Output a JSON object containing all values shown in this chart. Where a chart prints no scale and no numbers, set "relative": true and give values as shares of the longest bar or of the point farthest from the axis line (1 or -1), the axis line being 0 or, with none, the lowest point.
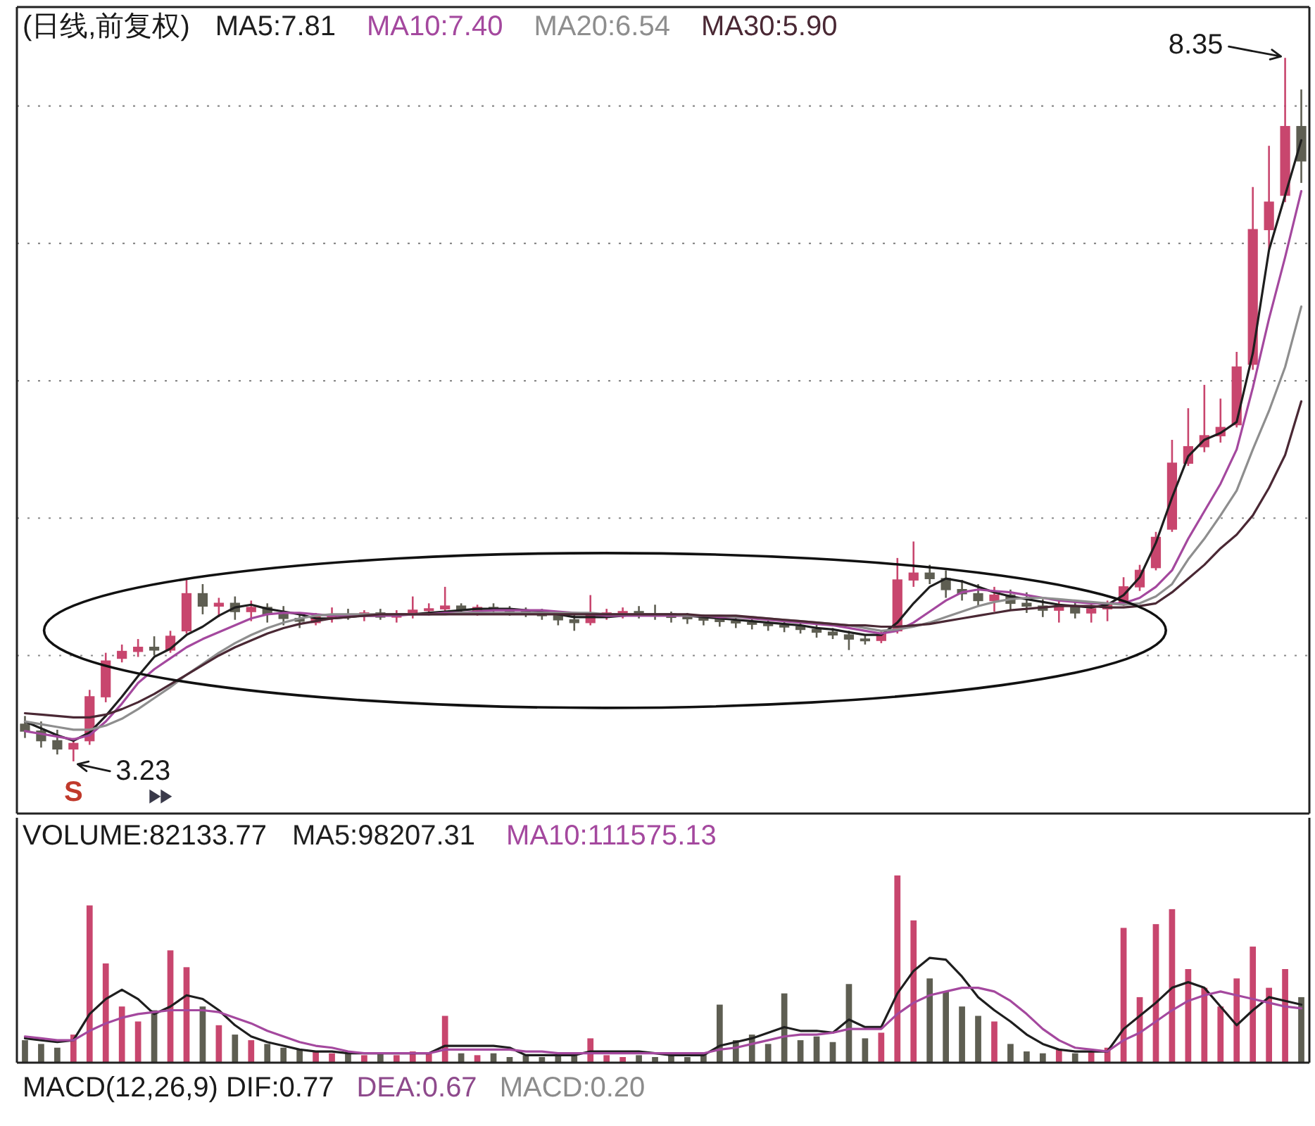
{
  "chart_data": [
    {
      "type": "candlestick",
      "title": "(日线,前复权)",
      "categories": [
        null,
        null,
        null,
        null,
        null,
        null,
        null,
        null,
        null,
        null,
        null,
        null,
        null,
        null,
        null,
        null,
        null,
        null,
        null,
        null,
        null,
        null,
        null,
        null,
        null,
        null,
        null,
        null,
        null,
        null,
        null,
        null,
        null,
        null,
        null,
        null,
        null,
        null,
        null,
        null,
        null,
        null,
        null,
        null,
        null,
        null,
        null,
        null,
        null,
        null,
        null,
        null,
        null,
        null,
        null,
        null,
        null,
        null,
        null,
        null,
        null,
        null,
        null,
        null,
        null,
        null,
        null,
        null,
        null,
        null,
        null,
        null,
        null,
        null,
        null,
        null,
        null,
        null,
        null,
        null
      ],
      "ohlc": [
        [
          3.5,
          3.56,
          3.4,
          3.45
        ],
        [
          3.45,
          3.52,
          3.33,
          3.38
        ],
        [
          3.38,
          3.46,
          3.28,
          3.32
        ],
        [
          3.32,
          3.4,
          3.23,
          3.36
        ],
        [
          3.38,
          3.75,
          3.35,
          3.7
        ],
        [
          3.7,
          4.02,
          3.66,
          3.96
        ],
        [
          3.98,
          4.08,
          3.95,
          4.03
        ],
        [
          4.03,
          4.12,
          3.99,
          4.06
        ],
        [
          4.06,
          4.14,
          4.0,
          4.04
        ],
        [
          4.04,
          4.18,
          4.02,
          4.14
        ],
        [
          4.18,
          4.55,
          4.16,
          4.45
        ],
        [
          4.45,
          4.52,
          4.3,
          4.36
        ],
        [
          4.36,
          4.42,
          4.28,
          4.38
        ],
        [
          4.38,
          4.43,
          4.26,
          4.32
        ],
        [
          4.32,
          4.4,
          4.25,
          4.35
        ],
        [
          4.35,
          4.38,
          4.24,
          4.3
        ],
        [
          4.3,
          4.36,
          4.22,
          4.27
        ],
        [
          4.27,
          4.3,
          4.2,
          4.25
        ],
        [
          4.24,
          4.31,
          4.22,
          4.28
        ],
        [
          4.28,
          4.35,
          4.24,
          4.3
        ],
        [
          4.3,
          4.34,
          4.26,
          4.29
        ],
        [
          4.29,
          4.33,
          4.25,
          4.31
        ],
        [
          4.31,
          4.34,
          4.26,
          4.28
        ],
        [
          4.28,
          4.33,
          4.24,
          4.3
        ],
        [
          4.3,
          4.43,
          4.27,
          4.33
        ],
        [
          4.33,
          4.38,
          4.29,
          4.34
        ],
        [
          4.34,
          4.5,
          4.3,
          4.36
        ],
        [
          4.36,
          4.38,
          4.31,
          4.33
        ],
        [
          4.33,
          4.37,
          4.29,
          4.35
        ],
        [
          4.35,
          4.38,
          4.31,
          4.34
        ],
        [
          4.34,
          4.36,
          4.29,
          4.32
        ],
        [
          4.32,
          4.35,
          4.28,
          4.31
        ],
        [
          4.31,
          4.34,
          4.26,
          4.29
        ],
        [
          4.29,
          4.32,
          4.22,
          4.26
        ],
        [
          4.26,
          4.3,
          4.18,
          4.24
        ],
        [
          4.24,
          4.44,
          4.22,
          4.3
        ],
        [
          4.3,
          4.34,
          4.26,
          4.31
        ],
        [
          4.31,
          4.35,
          4.27,
          4.32
        ],
        [
          4.32,
          4.36,
          4.27,
          4.3
        ],
        [
          4.3,
          4.37,
          4.26,
          4.29
        ],
        [
          4.29,
          4.32,
          4.24,
          4.28
        ],
        [
          4.28,
          4.31,
          4.23,
          4.27
        ],
        [
          4.27,
          4.3,
          4.22,
          4.26
        ],
        [
          4.26,
          4.29,
          4.21,
          4.25
        ],
        [
          4.25,
          4.28,
          4.2,
          4.24
        ],
        [
          4.24,
          4.27,
          4.19,
          4.23
        ],
        [
          4.23,
          4.27,
          4.18,
          4.22
        ],
        [
          4.22,
          4.25,
          4.17,
          4.21
        ],
        [
          4.21,
          4.24,
          4.16,
          4.19
        ],
        [
          4.19,
          4.23,
          4.13,
          4.17
        ],
        [
          4.17,
          4.2,
          4.12,
          4.15
        ],
        [
          4.15,
          4.18,
          4.04,
          4.12
        ],
        [
          4.12,
          4.15,
          4.08,
          4.11
        ],
        [
          4.11,
          4.18,
          4.09,
          4.16
        ],
        [
          4.18,
          4.71,
          4.16,
          4.55
        ],
        [
          4.55,
          4.83,
          4.5,
          4.6
        ],
        [
          4.6,
          4.66,
          4.52,
          4.56
        ],
        [
          4.56,
          4.62,
          4.42,
          4.48
        ],
        [
          4.48,
          4.55,
          4.4,
          4.45
        ],
        [
          4.45,
          4.52,
          4.36,
          4.4
        ],
        [
          4.4,
          4.5,
          4.32,
          4.44
        ],
        [
          4.44,
          4.48,
          4.33,
          4.38
        ],
        [
          4.38,
          4.46,
          4.31,
          4.36
        ],
        [
          4.36,
          4.41,
          4.28,
          4.33
        ],
        [
          4.33,
          4.4,
          4.24,
          4.36
        ],
        [
          4.36,
          4.39,
          4.27,
          4.31
        ],
        [
          4.31,
          4.37,
          4.24,
          4.34
        ],
        [
          4.34,
          4.4,
          4.25,
          4.37
        ],
        [
          4.38,
          4.57,
          4.36,
          4.5
        ],
        [
          4.5,
          4.66,
          4.47,
          4.62
        ],
        [
          4.64,
          4.9,
          4.62,
          4.86
        ],
        [
          4.92,
          5.57,
          4.9,
          5.4
        ],
        [
          5.4,
          5.8,
          5.38,
          5.52
        ],
        [
          5.52,
          5.97,
          5.48,
          5.6
        ],
        [
          5.6,
          5.87,
          5.55,
          5.66
        ],
        [
          5.68,
          6.21,
          5.66,
          6.1
        ],
        [
          6.12,
          7.41,
          6.08,
          7.1
        ],
        [
          7.1,
          7.71,
          6.96,
          7.3
        ],
        [
          7.35,
          8.35,
          7.3,
          7.85
        ],
        [
          7.85,
          8.12,
          7.44,
          7.6
        ]
      ],
      "colors": [
        "#5e5e52",
        "#5e5e52",
        "#5e5e52",
        "#c8466e",
        "#c8466e",
        "#c8466e",
        "#c8466e",
        "#c8466e",
        "#5e5e52",
        "#c8466e",
        "#c8466e",
        "#5e5e52",
        "#c8466e",
        "#5e5e52",
        "#c8466e",
        "#5e5e52",
        "#5e5e52",
        "#5e5e52",
        "#c8466e",
        "#c8466e",
        "#5e5e52",
        "#c8466e",
        "#5e5e52",
        "#c8466e",
        "#c8466e",
        "#c8466e",
        "#c8466e",
        "#5e5e52",
        "#c8466e",
        "#5e5e52",
        "#5e5e52",
        "#5e5e52",
        "#5e5e52",
        "#5e5e52",
        "#5e5e52",
        "#c8466e",
        "#c8466e",
        "#c8466e",
        "#5e5e52",
        "#5e5e52",
        "#5e5e52",
        "#5e5e52",
        "#5e5e52",
        "#5e5e52",
        "#5e5e52",
        "#5e5e52",
        "#5e5e52",
        "#5e5e52",
        "#5e5e52",
        "#5e5e52",
        "#5e5e52",
        "#5e5e52",
        "#5e5e52",
        "#c8466e",
        "#c8466e",
        "#c8466e",
        "#5e5e52",
        "#5e5e52",
        "#5e5e52",
        "#5e5e52",
        "#c8466e",
        "#5e5e52",
        "#5e5e52",
        "#5e5e52",
        "#c8466e",
        "#5e5e52",
        "#c8466e",
        "#c8466e",
        "#c8466e",
        "#c8466e",
        "#c8466e",
        "#c8466e",
        "#c8466e",
        "#c8466e",
        "#c8466e",
        "#c8466e",
        "#c8466e",
        "#c8466e",
        "#c8466e",
        "#5e5e52"
      ],
      "series": [
        {
          "type": "line",
          "name": "MA5:7.81",
          "color": "#1e1e1e",
          "values": [
            3.52,
            3.47,
            3.42,
            3.38,
            3.44,
            3.56,
            3.7,
            3.85,
            3.99,
            4.05,
            4.15,
            4.21,
            4.29,
            4.35,
            4.37,
            4.34,
            4.32,
            4.3,
            4.27,
            4.27,
            4.28,
            4.29,
            4.29,
            4.3,
            4.3,
            4.31,
            4.32,
            4.33,
            4.34,
            4.34,
            4.34,
            4.33,
            4.32,
            4.3,
            4.28,
            4.28,
            4.28,
            4.29,
            4.3,
            4.3,
            4.3,
            4.29,
            4.28,
            4.27,
            4.26,
            4.25,
            4.24,
            4.23,
            4.22,
            4.2,
            4.19,
            4.17,
            4.15,
            4.15,
            4.24,
            4.38,
            4.5,
            4.56,
            4.54,
            4.5,
            4.46,
            4.43,
            4.41,
            4.39,
            4.37,
            4.36,
            4.35,
            4.37,
            4.44,
            4.57,
            4.82,
            5.15,
            5.45,
            5.57,
            5.62,
            5.7,
            6.2,
            6.95,
            7.35,
            7.75
          ]
        },
        {
          "type": "line",
          "name": "MA10:7.40",
          "color": "#a4489e",
          "values": [
            3.45,
            3.43,
            3.41,
            3.39,
            3.42,
            3.52,
            3.65,
            3.8,
            3.9,
            3.98,
            4.06,
            4.12,
            4.17,
            4.22,
            4.27,
            4.3,
            4.31,
            4.31,
            4.3,
            4.29,
            4.29,
            4.29,
            4.29,
            4.29,
            4.3,
            4.3,
            4.31,
            4.31,
            4.32,
            4.33,
            4.33,
            4.33,
            4.33,
            4.32,
            4.31,
            4.3,
            4.29,
            4.29,
            4.29,
            4.29,
            4.29,
            4.29,
            4.29,
            4.28,
            4.28,
            4.27,
            4.26,
            4.25,
            4.24,
            4.23,
            4.22,
            4.2,
            4.18,
            4.16,
            4.18,
            4.24,
            4.32,
            4.4,
            4.46,
            4.48,
            4.47,
            4.46,
            4.44,
            4.42,
            4.4,
            4.39,
            4.38,
            4.38,
            4.38,
            4.42,
            4.5,
            4.62,
            4.85,
            5.05,
            5.25,
            5.5,
            5.95,
            6.45,
            6.9,
            7.38
          ]
        },
        {
          "type": "line",
          "name": "MA20:6.54",
          "color": "#8e8e8e",
          "values": [
            3.52,
            3.5,
            3.48,
            3.46,
            3.46,
            3.49,
            3.54,
            3.61,
            3.69,
            3.77,
            3.86,
            3.94,
            4.02,
            4.09,
            4.15,
            4.2,
            4.24,
            4.27,
            4.29,
            4.3,
            4.3,
            4.3,
            4.3,
            4.3,
            4.3,
            4.3,
            4.3,
            4.31,
            4.31,
            4.31,
            4.31,
            4.31,
            4.31,
            4.31,
            4.31,
            4.31,
            4.3,
            4.3,
            4.3,
            4.3,
            4.3,
            4.29,
            4.29,
            4.29,
            4.28,
            4.28,
            4.27,
            4.26,
            4.25,
            4.24,
            4.23,
            4.22,
            4.2,
            4.18,
            4.19,
            4.21,
            4.24,
            4.28,
            4.32,
            4.36,
            4.39,
            4.41,
            4.42,
            4.42,
            4.41,
            4.4,
            4.39,
            4.38,
            4.37,
            4.38,
            4.43,
            4.52,
            4.7,
            4.85,
            5.02,
            5.2,
            5.5,
            5.78,
            6.1,
            6.54
          ]
        },
        {
          "type": "line",
          "name": "MA30:5.90",
          "color": "#4a2834",
          "values": [
            3.58,
            3.57,
            3.56,
            3.55,
            3.55,
            3.57,
            3.61,
            3.66,
            3.72,
            3.79,
            3.86,
            3.93,
            4.0,
            4.06,
            4.11,
            4.16,
            4.2,
            4.23,
            4.25,
            4.27,
            4.28,
            4.29,
            4.3,
            4.3,
            4.3,
            4.3,
            4.3,
            4.3,
            4.3,
            4.3,
            4.3,
            4.3,
            4.3,
            4.3,
            4.3,
            4.3,
            4.3,
            4.3,
            4.3,
            4.3,
            4.3,
            4.3,
            4.29,
            4.29,
            4.29,
            4.28,
            4.27,
            4.26,
            4.25,
            4.24,
            4.23,
            4.22,
            4.22,
            4.21,
            4.21,
            4.22,
            4.23,
            4.25,
            4.27,
            4.29,
            4.31,
            4.33,
            4.34,
            4.35,
            4.36,
            4.36,
            4.36,
            4.35,
            4.35,
            4.36,
            4.38,
            4.46,
            4.56,
            4.66,
            4.78,
            4.88,
            5.02,
            5.22,
            5.46,
            5.85
          ]
        }
      ],
      "ylim": [
        2.85,
        8.72
      ],
      "yticks": [
        {
          "value": 4,
          "label": null
        },
        {
          "value": 5,
          "label": null
        },
        {
          "value": 6,
          "label": null
        },
        {
          "value": 7,
          "label": null
        },
        {
          "value": 8,
          "label": null
        }
      ],
      "grid": "y",
      "annotations": [
        "8.35",
        "3.23",
        "S"
      ]
    },
    {
      "type": "bar",
      "title": "VOLUME:82133.77",
      "relative": true,
      "categories": [
        null,
        null,
        null,
        null,
        null,
        null,
        null,
        null,
        null,
        null,
        null,
        null,
        null,
        null,
        null,
        null,
        null,
        null,
        null,
        null,
        null,
        null,
        null,
        null,
        null,
        null,
        null,
        null,
        null,
        null,
        null,
        null,
        null,
        null,
        null,
        null,
        null,
        null,
        null,
        null,
        null,
        null,
        null,
        null,
        null,
        null,
        null,
        null,
        null,
        null,
        null,
        null,
        null,
        null,
        null,
        null,
        null,
        null,
        null,
        null,
        null,
        null,
        null,
        null,
        null,
        null,
        null,
        null,
        null,
        null,
        null,
        null,
        null,
        null,
        null,
        null,
        null,
        null,
        null,
        null
      ],
      "series": [
        {
          "values": [
            0.12,
            0.1,
            0.08,
            0.15,
            0.84,
            0.53,
            0.3,
            0.22,
            0.28,
            0.6,
            0.51,
            0.3,
            0.2,
            0.15,
            0.12,
            0.1,
            0.08,
            0.07,
            0.06,
            0.05,
            0.06,
            0.04,
            0.05,
            0.04,
            0.06,
            0.05,
            0.25,
            0.05,
            0.04,
            0.05,
            0.03,
            0.04,
            0.03,
            0.04,
            0.05,
            0.13,
            0.04,
            0.03,
            0.04,
            0.03,
            0.04,
            0.03,
            0.05,
            0.31,
            0.12,
            0.15,
            0.1,
            0.37,
            0.12,
            0.14,
            0.11,
            0.42,
            0.13,
            0.16,
            1.0,
            0.76,
            0.45,
            0.38,
            0.3,
            0.25,
            0.22,
            0.1,
            0.06,
            0.05,
            0.07,
            0.05,
            0.06,
            0.08,
            0.72,
            0.35,
            0.74,
            0.82,
            0.5,
            0.4,
            0.3,
            0.45,
            0.62,
            0.4,
            0.5,
            0.35
          ],
          "colors": [
            "#5e5e52",
            "#5e5e52",
            "#5e5e52",
            "#c8466e",
            "#c8466e",
            "#c8466e",
            "#c8466e",
            "#c8466e",
            "#5e5e52",
            "#c8466e",
            "#c8466e",
            "#5e5e52",
            "#c8466e",
            "#5e5e52",
            "#c8466e",
            "#5e5e52",
            "#5e5e52",
            "#5e5e52",
            "#c8466e",
            "#c8466e",
            "#5e5e52",
            "#c8466e",
            "#5e5e52",
            "#c8466e",
            "#c8466e",
            "#c8466e",
            "#c8466e",
            "#5e5e52",
            "#c8466e",
            "#5e5e52",
            "#5e5e52",
            "#5e5e52",
            "#5e5e52",
            "#5e5e52",
            "#5e5e52",
            "#c8466e",
            "#c8466e",
            "#c8466e",
            "#5e5e52",
            "#5e5e52",
            "#5e5e52",
            "#5e5e52",
            "#5e5e52",
            "#5e5e52",
            "#5e5e52",
            "#5e5e52",
            "#5e5e52",
            "#5e5e52",
            "#5e5e52",
            "#5e5e52",
            "#5e5e52",
            "#5e5e52",
            "#5e5e52",
            "#c8466e",
            "#c8466e",
            "#c8466e",
            "#5e5e52",
            "#5e5e52",
            "#5e5e52",
            "#5e5e52",
            "#c8466e",
            "#5e5e52",
            "#5e5e52",
            "#5e5e52",
            "#c8466e",
            "#5e5e52",
            "#c8466e",
            "#c8466e",
            "#c8466e",
            "#c8466e",
            "#c8466e",
            "#c8466e",
            "#c8466e",
            "#c8466e",
            "#c8466e",
            "#c8466e",
            "#c8466e",
            "#c8466e",
            "#c8466e",
            "#5e5e52"
          ]
        },
        {
          "type": "line",
          "name": "MA5:98207.31",
          "color": "#1e1e1e",
          "values": [
            0.13,
            0.12,
            0.11,
            0.12,
            0.26,
            0.34,
            0.39,
            0.34,
            0.26,
            0.3,
            0.36,
            0.34,
            0.28,
            0.2,
            0.14,
            0.11,
            0.09,
            0.07,
            0.06,
            0.06,
            0.05,
            0.05,
            0.05,
            0.05,
            0.05,
            0.05,
            0.09,
            0.09,
            0.09,
            0.09,
            0.08,
            0.04,
            0.04,
            0.04,
            0.04,
            0.06,
            0.06,
            0.06,
            0.06,
            0.05,
            0.04,
            0.04,
            0.04,
            0.09,
            0.11,
            0.13,
            0.16,
            0.19,
            0.17,
            0.17,
            0.16,
            0.23,
            0.19,
            0.19,
            0.37,
            0.49,
            0.56,
            0.55,
            0.46,
            0.35,
            0.28,
            0.22,
            0.15,
            0.1,
            0.07,
            0.06,
            0.06,
            0.06,
            0.18,
            0.25,
            0.32,
            0.4,
            0.43,
            0.4,
            0.3,
            0.2,
            0.28,
            0.35,
            0.33,
            0.31
          ]
        },
        {
          "type": "line",
          "name": "MA10:111575.13",
          "color": "#a4489e",
          "values": [
            0.14,
            0.13,
            0.12,
            0.12,
            0.17,
            0.21,
            0.24,
            0.26,
            0.27,
            0.28,
            0.28,
            0.28,
            0.27,
            0.24,
            0.21,
            0.17,
            0.14,
            0.11,
            0.09,
            0.08,
            0.06,
            0.05,
            0.05,
            0.05,
            0.05,
            0.05,
            0.07,
            0.07,
            0.07,
            0.07,
            0.07,
            0.06,
            0.06,
            0.05,
            0.05,
            0.05,
            0.05,
            0.05,
            0.05,
            0.05,
            0.05,
            0.05,
            0.05,
            0.07,
            0.08,
            0.1,
            0.12,
            0.14,
            0.15,
            0.15,
            0.16,
            0.18,
            0.18,
            0.18,
            0.26,
            0.32,
            0.36,
            0.38,
            0.4,
            0.4,
            0.38,
            0.33,
            0.26,
            0.18,
            0.12,
            0.08,
            0.07,
            0.06,
            0.12,
            0.16,
            0.22,
            0.28,
            0.33,
            0.36,
            0.38,
            0.36,
            0.34,
            0.32,
            0.3,
            0.29
          ]
        }
      ],
      "annotations": [
        "MACD(12,26,9) DIF:0.77",
        "DEA:0.67",
        "MACD:0.20"
      ]
    }
  ]
}
